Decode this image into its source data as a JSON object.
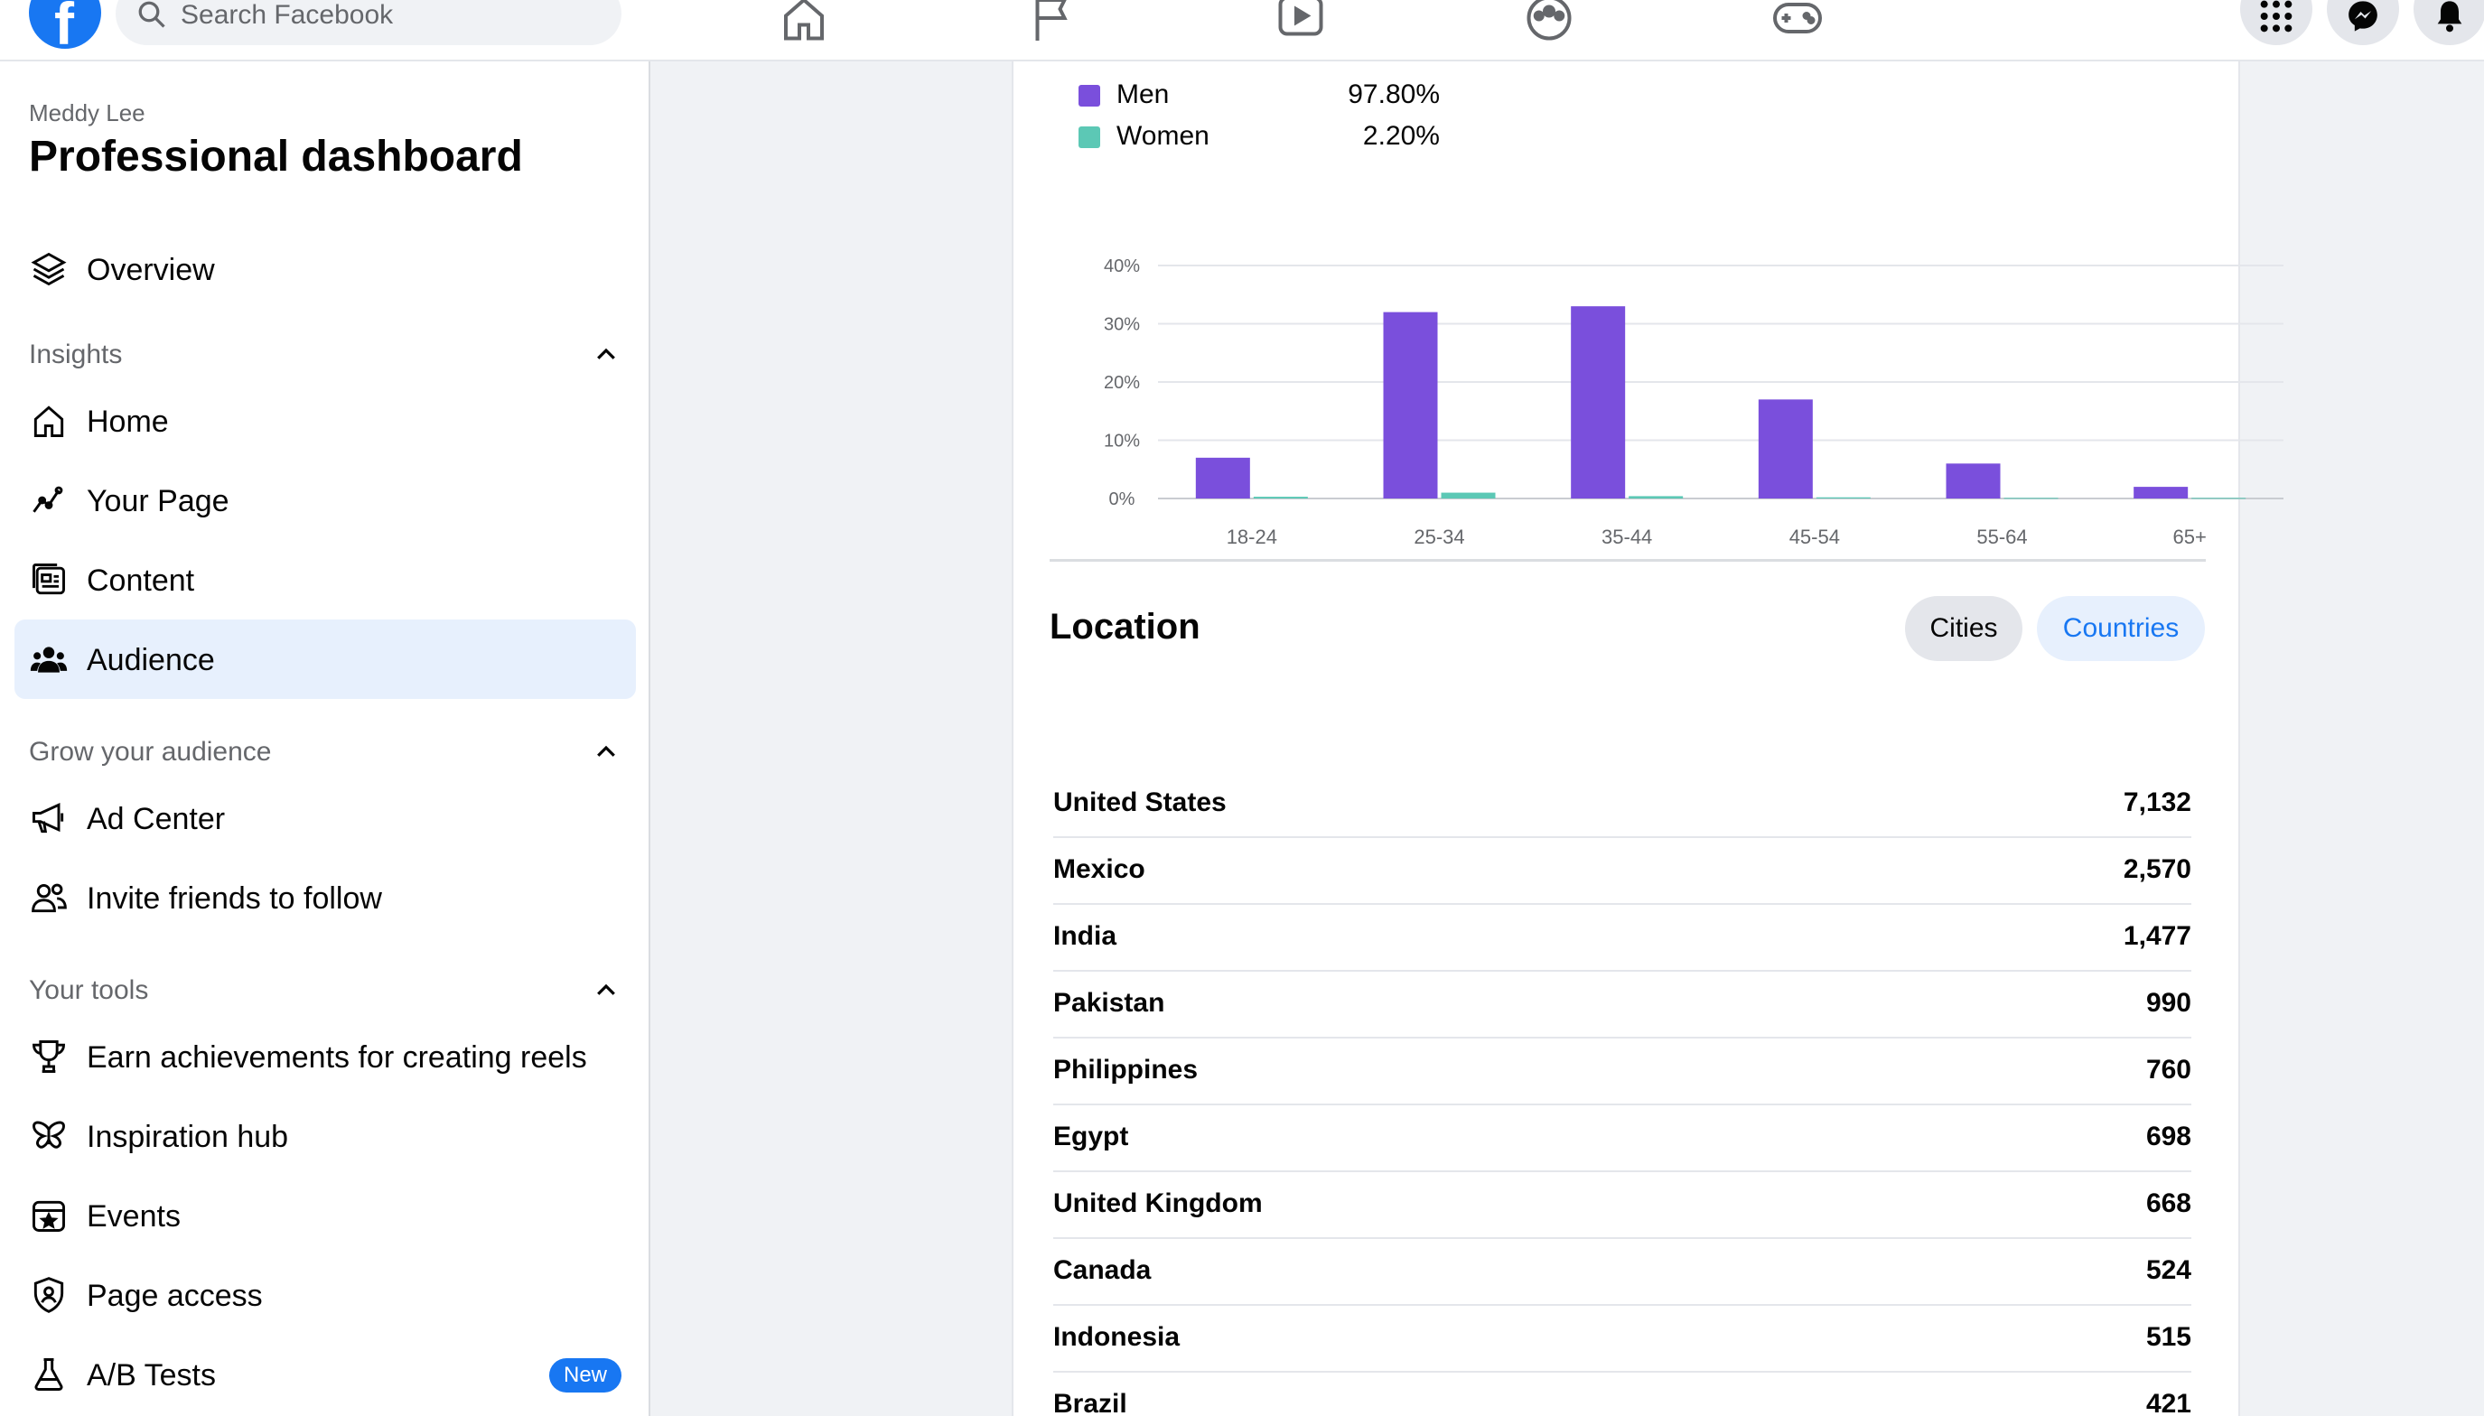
{
  "topbar": {
    "logo_letter": "f",
    "search_placeholder": "Search Facebook",
    "nav_icons": [
      "home-icon",
      "flag-icon",
      "video-icon",
      "groups-icon",
      "gaming-icon"
    ],
    "right_icons": [
      "menu-grid-icon",
      "messenger-icon",
      "notifications-icon"
    ]
  },
  "sidebar": {
    "owner": "Meddy Lee",
    "title": "Professional dashboard",
    "overview": "Overview",
    "sections": [
      {
        "heading": "Insights",
        "items": [
          "Home",
          "Your Page",
          "Content",
          "Audience"
        ]
      },
      {
        "heading": "Grow your audience",
        "items": [
          "Ad Center",
          "Invite friends to follow"
        ]
      },
      {
        "heading": "Your tools",
        "items": [
          "Earn achievements for creating reels",
          "Inspiration hub",
          "Events",
          "Page access",
          "A/B Tests"
        ]
      }
    ],
    "active_item": "Audience",
    "new_badge": "New"
  },
  "gender_legend": [
    {
      "name": "Men",
      "value": "97.80%",
      "color": "#7a4fdc"
    },
    {
      "name": "Women",
      "value": "2.20%",
      "color": "#5cc8b5"
    }
  ],
  "chart_data": {
    "type": "bar",
    "categories": [
      "18-24",
      "25-34",
      "35-44",
      "45-54",
      "55-64",
      "65+"
    ],
    "series": [
      {
        "name": "Men",
        "color": "#7a4fdc",
        "values": [
          7,
          32,
          33,
          17,
          6,
          2
        ]
      },
      {
        "name": "Women",
        "color": "#5cc8b5",
        "values": [
          0.3,
          1,
          0.4,
          0.2,
          0.1,
          0.1
        ]
      }
    ],
    "y_ticks": [
      "0%",
      "10%",
      "20%",
      "30%",
      "40%"
    ],
    "ylim": [
      0,
      40
    ],
    "grid": true
  },
  "location": {
    "title": "Location",
    "tabs": [
      "Cities",
      "Countries"
    ],
    "selected_tab": "Countries",
    "rows": [
      {
        "country": "United States",
        "count": "7,132"
      },
      {
        "country": "Mexico",
        "count": "2,570"
      },
      {
        "country": "India",
        "count": "1,477"
      },
      {
        "country": "Pakistan",
        "count": "990"
      },
      {
        "country": "Philippines",
        "count": "760"
      },
      {
        "country": "Egypt",
        "count": "698"
      },
      {
        "country": "United Kingdom",
        "count": "668"
      },
      {
        "country": "Canada",
        "count": "524"
      },
      {
        "country": "Indonesia",
        "count": "515"
      },
      {
        "country": "Brazil",
        "count": "421"
      }
    ]
  }
}
